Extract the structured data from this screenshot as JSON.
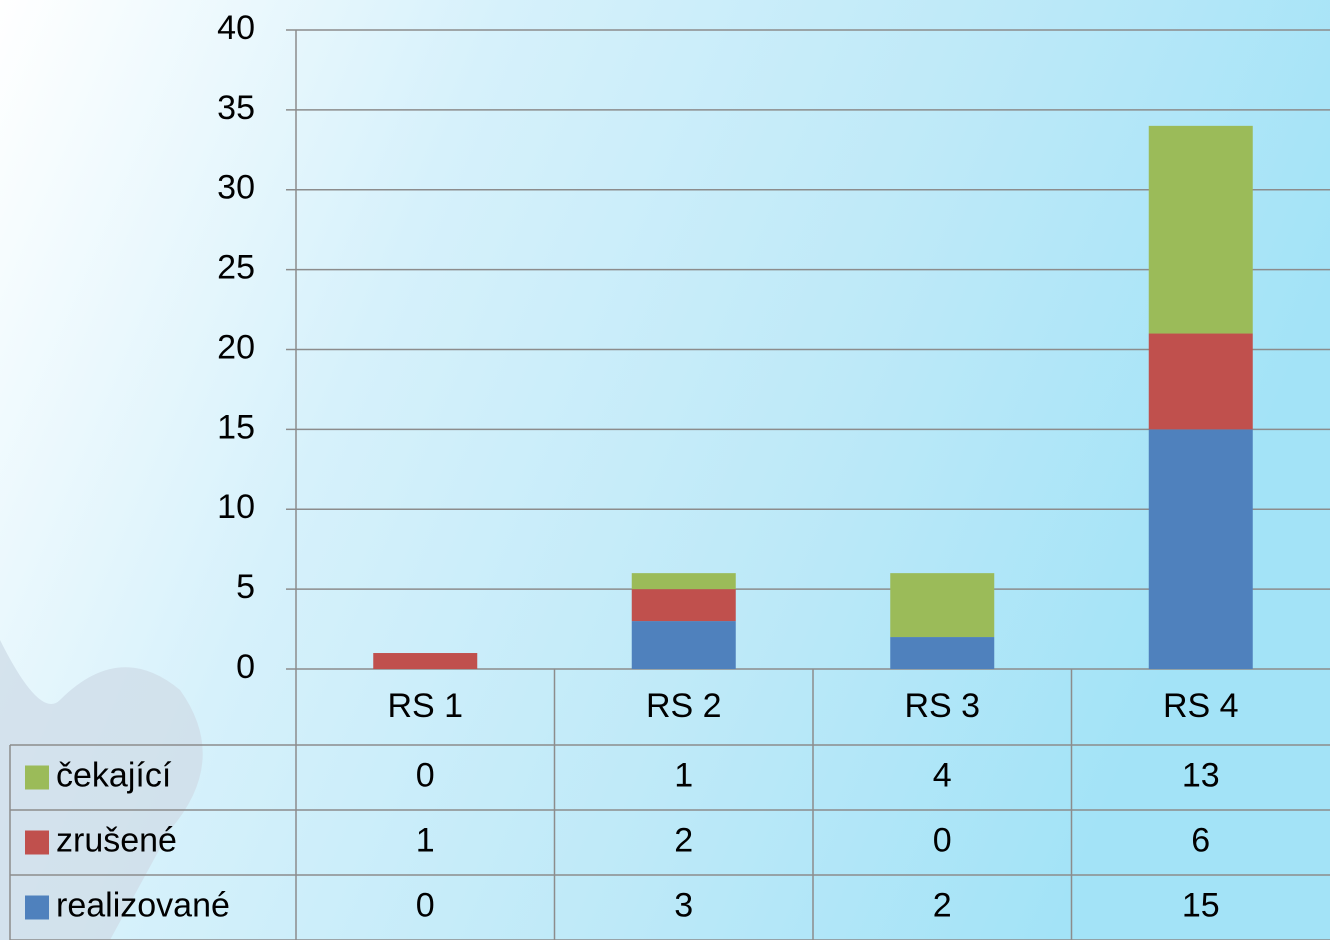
{
  "chart_data": {
    "type": "bar",
    "stacked": true,
    "categories": [
      "RS 1",
      "RS 2",
      "RS 3",
      "RS 4"
    ],
    "series": [
      {
        "name": "realizované",
        "color": "#4f81bd",
        "values": [
          0,
          3,
          2,
          15
        ]
      },
      {
        "name": "zrušené",
        "color": "#c0504d",
        "values": [
          1,
          2,
          0,
          6
        ]
      },
      {
        "name": "čekající",
        "color": "#9bbb59",
        "values": [
          0,
          1,
          4,
          13
        ]
      }
    ],
    "ylim": [
      0,
      40
    ],
    "yticks": [
      0,
      5,
      10,
      15,
      20,
      25,
      30,
      35,
      40
    ],
    "grid": true,
    "data_table": true
  }
}
